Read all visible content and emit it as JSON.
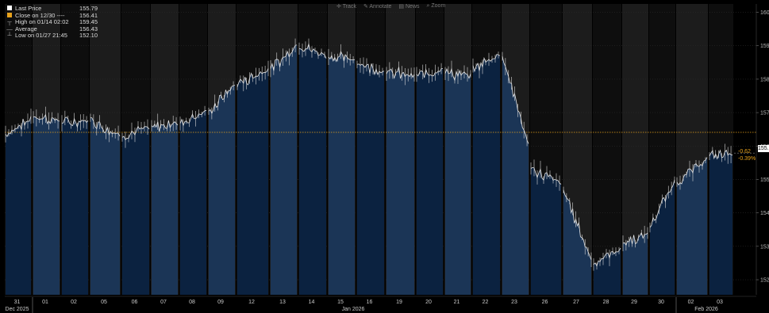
{
  "legend": {
    "items": [
      {
        "label": "Last Price",
        "value": "155.79",
        "marker": "white-square"
      },
      {
        "label": "Close on 12/30 ----",
        "value": "156.41",
        "marker": "orange-square"
      },
      {
        "label": "High on 01/14 02:02",
        "value": "159.45",
        "marker": "high-bar"
      },
      {
        "label": "Average",
        "value": "156.43",
        "marker": "dash"
      },
      {
        "label": "Low on 01/27 21:45",
        "value": "152.10",
        "marker": "low-bar"
      }
    ]
  },
  "toolbar": {
    "track": "Track",
    "annotate": "Annotate",
    "news": "News",
    "zoom": "Zoom"
  },
  "change": {
    "abs": "-0.62",
    "pct": "-0.39%"
  },
  "last_tag": "155.",
  "colors": {
    "background": "#000000",
    "area_dark": "#0b2240",
    "area_light": "#1b3556",
    "band": "#1a1a1a",
    "reference": "#e8a21c",
    "line": "#ffffff",
    "change": "#e8a21c"
  },
  "chart_data": {
    "type": "area",
    "title": "",
    "reference_line": {
      "label": "Close on 12/30",
      "value": 156.41
    },
    "y_ticks": [
      152,
      153,
      154,
      155,
      156,
      157,
      158,
      159,
      160
    ],
    "ylim": [
      151.55,
      160.25
    ],
    "ylabel": "",
    "x_labels": [
      "31",
      "01",
      "02",
      "05",
      "06",
      "07",
      "08",
      "09",
      "12",
      "13",
      "14",
      "15",
      "16",
      "19",
      "20",
      "21",
      "22",
      "23",
      "26",
      "27",
      "28",
      "29",
      "30",
      "02",
      "03"
    ],
    "x_sublabels": [
      {
        "under": "31",
        "text": "Dec 2025"
      },
      {
        "under": "15",
        "text": "Jan 2026"
      },
      {
        "under": "02",
        "text": "Feb 2026"
      }
    ],
    "session_days": [
      "31",
      "01",
      "02",
      "05",
      "06",
      "07",
      "08",
      "09",
      "12",
      "13",
      "14",
      "15",
      "16",
      "19",
      "20",
      "21",
      "22",
      "23",
      "26",
      "27",
      "28",
      "29",
      "30",
      "02",
      "03"
    ],
    "session_open_close": [
      [
        156.35,
        156.8
      ],
      [
        156.9,
        156.75
      ],
      [
        156.7,
        156.75
      ],
      [
        156.8,
        156.3
      ],
      [
        156.3,
        156.55
      ],
      [
        156.55,
        156.7
      ],
      [
        156.7,
        157.05
      ],
      [
        157.0,
        157.85
      ],
      [
        157.85,
        158.3
      ],
      [
        158.3,
        159.0
      ],
      [
        159.0,
        158.7
      ],
      [
        158.7,
        158.55
      ],
      [
        158.5,
        158.2
      ],
      [
        158.2,
        158.1
      ],
      [
        158.1,
        158.3
      ],
      [
        158.2,
        158.1
      ],
      [
        158.3,
        158.75
      ],
      [
        158.75,
        156.0
      ],
      [
        155.3,
        154.9
      ],
      [
        154.7,
        152.6
      ],
      [
        152.5,
        152.9
      ],
      [
        153.1,
        153.35
      ],
      [
        153.6,
        154.9
      ],
      [
        154.9,
        155.6
      ],
      [
        155.7,
        155.79
      ]
    ],
    "last": 155.79
  }
}
